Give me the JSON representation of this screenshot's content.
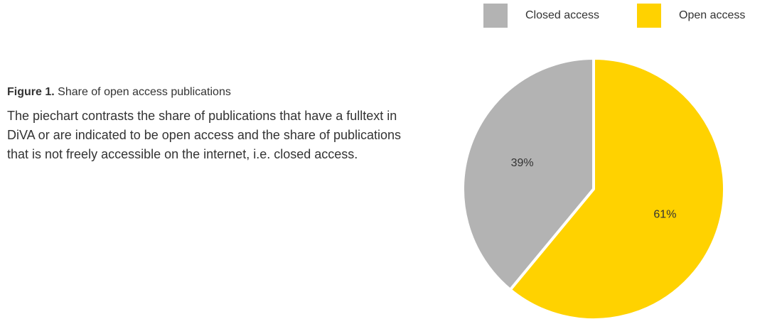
{
  "caption": {
    "label": "Figure 1.",
    "title": "Share of open access publications",
    "description": "The piechart contrasts the share of publications that have a fulltext in DiVA or are indicated to be open access and the share of publications that is not freely accessible on the internet, i.e. closed access."
  },
  "chart_data": {
    "type": "pie",
    "legend_position": "top-right",
    "slices": [
      {
        "name": "Closed access",
        "value": 39,
        "label": "39%",
        "color": "#b3b3b3"
      },
      {
        "name": "Open access",
        "value": 61,
        "label": "61%",
        "color": "#ffd200"
      }
    ]
  }
}
